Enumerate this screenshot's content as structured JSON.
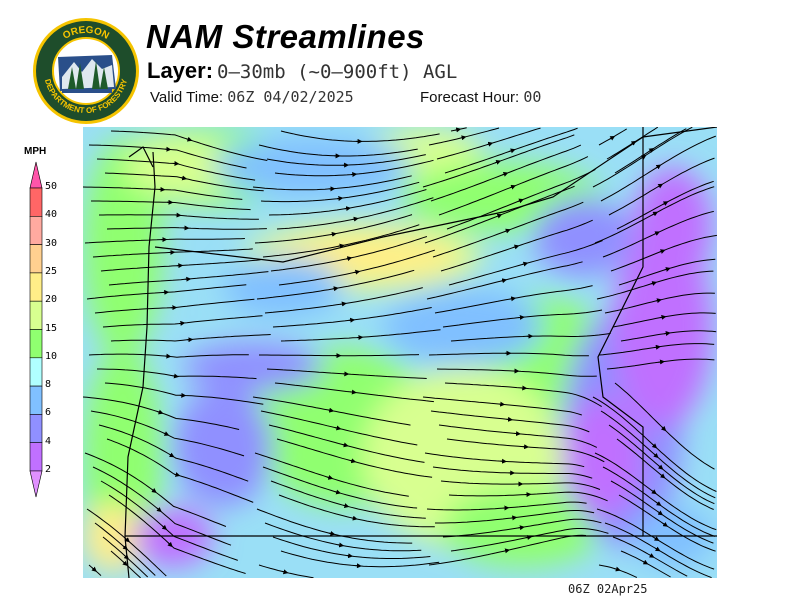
{
  "header": {
    "title": "NAM Streamlines",
    "layer_label": "Layer:",
    "layer_value": "0–30mb (~0–900ft) AGL",
    "valid_time_label": "Valid Time:",
    "valid_time_value": "06Z 04/02/2025",
    "forecast_hour_label": "Forecast Hour:",
    "forecast_hour_value": "00"
  },
  "logo": {
    "top_text": "OREGON",
    "bottom_text": "DEPARTMENT OF FORESTRY",
    "colors": {
      "ring": "#1e4d2b",
      "border": "#f5c400"
    }
  },
  "legend": {
    "unit": "MPH",
    "ticks": [
      "50",
      "40",
      "30",
      "25",
      "20",
      "15",
      "10",
      "8",
      "6",
      "4",
      "2"
    ],
    "colors": [
      "#ff6666",
      "#ffaaa0",
      "#ffd090",
      "#ffee88",
      "#d8ff90",
      "#90ff70",
      "#b0ffff",
      "#80c0ff",
      "#9090ff",
      "#c070ff"
    ],
    "over_color": "#ff55aa",
    "under_color": "#e090ff"
  },
  "map": {
    "streamline_color": "#000000"
  },
  "footer": {
    "timestamp": "06Z 02Apr25"
  }
}
